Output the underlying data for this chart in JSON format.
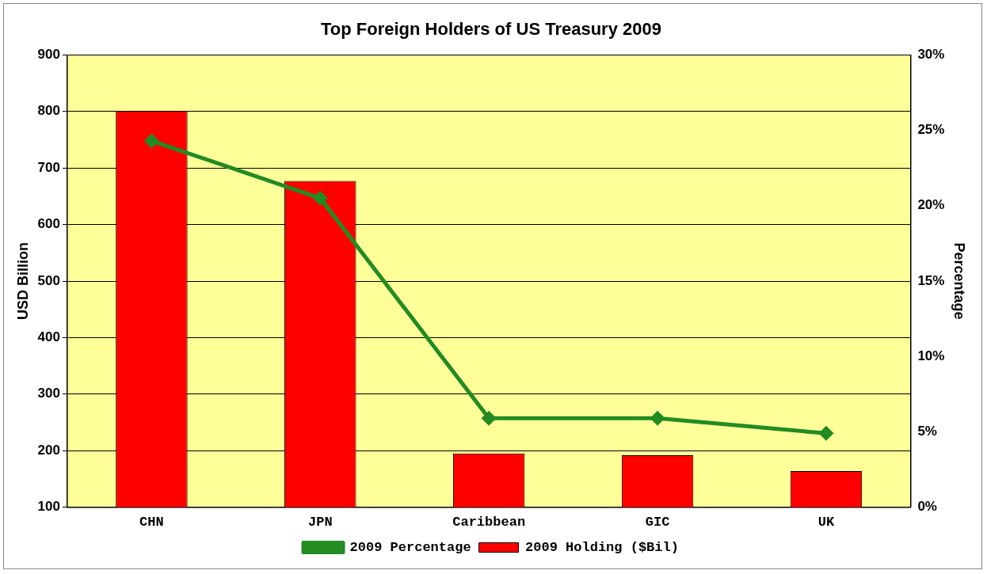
{
  "chart_data": {
    "type": "bar",
    "title": "Top Foreign Holders of US Treasury 2009",
    "ylabel": "USD Billion",
    "y2label": "Percentage",
    "categories": [
      "CHN",
      "JPN",
      "Caribbean",
      "GIC",
      "UK"
    ],
    "series": [
      {
        "name": "2009 Holding ($Bil)",
        "color": "#ff0000",
        "values": [
          801,
          677,
          195,
          192,
          164
        ]
      },
      {
        "name": "2009 Percentage",
        "type": "line",
        "axis": "y2",
        "color": "#228b22",
        "values": [
          24.3,
          20.5,
          5.9,
          5.9,
          4.9
        ]
      }
    ],
    "ylim": [
      100,
      900
    ],
    "yticks": [
      100,
      200,
      300,
      400,
      500,
      600,
      700,
      800,
      900
    ],
    "y2lim": [
      0,
      30
    ],
    "y2ticks": [
      {
        "value": 0,
        "label": "0%"
      },
      {
        "value": 5,
        "label": "5%"
      },
      {
        "value": 10,
        "label": "10%"
      },
      {
        "value": 15,
        "label": "15%"
      },
      {
        "value": 20,
        "label": "20%"
      },
      {
        "value": 25,
        "label": "25%"
      },
      {
        "value": 30,
        "label": "30%"
      }
    ],
    "grid": "y",
    "legend": "bottom",
    "marker": "diamond",
    "line_style": "solid"
  }
}
